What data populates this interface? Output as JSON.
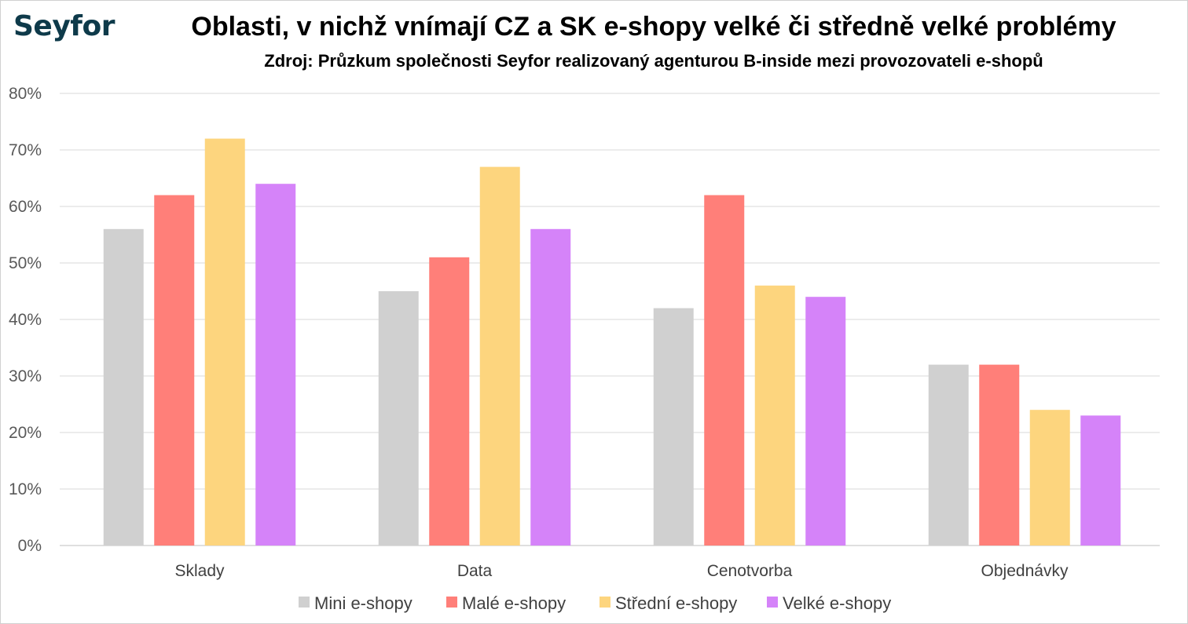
{
  "logo_text": "Seyfor",
  "chart_data": {
    "type": "bar",
    "title": "Oblasti, v nichž vnímají CZ a SK e-shopy velké či středně velké problémy",
    "subtitle": "Zdroj: Průzkum společnosti Seyfor realizovaný agenturou B-inside mezi provozovateli e-shopů",
    "categories": [
      "Sklady",
      "Data",
      "Cenotvorba",
      "Objednávky"
    ],
    "series": [
      {
        "name": "Mini e-shopy",
        "color": "#d0d0d0",
        "values": [
          56,
          45,
          42,
          32
        ]
      },
      {
        "name": "Malé e-shopy",
        "color": "#ff7f79",
        "values": [
          62,
          51,
          62,
          32
        ]
      },
      {
        "name": "Střední e-shopy",
        "color": "#fdd57e",
        "values": [
          72,
          67,
          46,
          24
        ]
      },
      {
        "name": "Velké e-shopy",
        "color": "#d583f9",
        "values": [
          64,
          56,
          44,
          23
        ]
      }
    ],
    "ylim": [
      0,
      80
    ],
    "yticks": [
      0,
      10,
      20,
      30,
      40,
      50,
      60,
      70,
      80
    ],
    "ytick_labels": [
      "0%",
      "10%",
      "20%",
      "30%",
      "40%",
      "50%",
      "60%",
      "70%",
      "80%"
    ],
    "grid": true,
    "legend_position": "bottom"
  }
}
